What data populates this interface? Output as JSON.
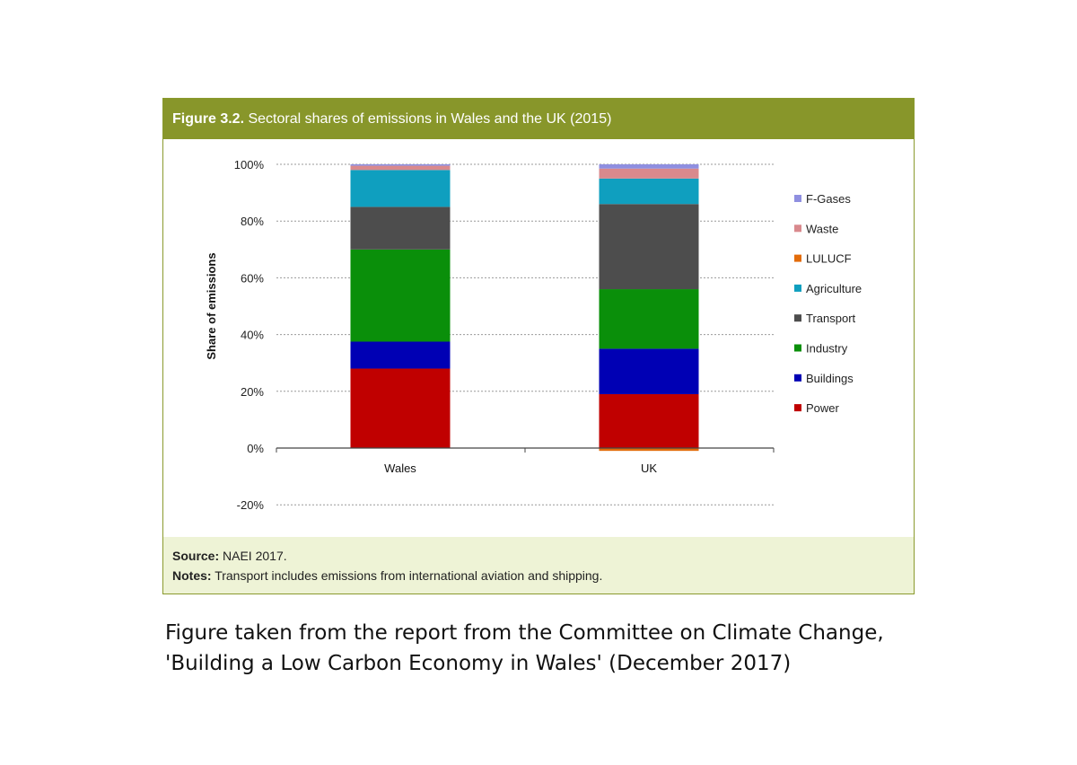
{
  "figure": {
    "number": "Figure 3.2.",
    "title": "Sectoral shares of emissions in Wales and the UK (2015)",
    "source_label": "Source:",
    "source_text": "NAEI 2017.",
    "notes_label": "Notes:",
    "notes_text": "Transport includes emissions from international aviation and shipping."
  },
  "caption": {
    "line1": "Figure taken from the report from the Committee on Climate Change,",
    "line2": "'Building a Low Carbon Economy in Wales' (December 2017)"
  },
  "chart_data": {
    "type": "bar",
    "stacked": true,
    "categories": [
      "Wales",
      "UK"
    ],
    "ylabel": "Share of emissions",
    "ylim": [
      -20,
      100
    ],
    "yticks": [
      -20,
      0,
      20,
      40,
      60,
      80,
      100
    ],
    "ytick_labels": [
      "-20%",
      "0%",
      "20%",
      "40%",
      "60%",
      "80%",
      "100%"
    ],
    "grid": true,
    "legend_position": "right",
    "series": [
      {
        "name": "Power",
        "color": "#c00000",
        "values": [
          28,
          19
        ]
      },
      {
        "name": "Buildings",
        "color": "#0000b4",
        "values": [
          9.5,
          16
        ]
      },
      {
        "name": "Industry",
        "color": "#0a8f0a",
        "values": [
          32.5,
          21
        ]
      },
      {
        "name": "Transport",
        "color": "#4d4d4d",
        "values": [
          15,
          30
        ]
      },
      {
        "name": "Agriculture",
        "color": "#0f9fbf",
        "values": [
          13,
          9
        ]
      },
      {
        "name": "LULUCF",
        "color": "#e36c0a",
        "values": [
          0,
          -1
        ]
      },
      {
        "name": "Waste",
        "color": "#d9898d",
        "values": [
          1.5,
          3.5
        ]
      },
      {
        "name": "F-Gases",
        "color": "#8f8fe0",
        "values": [
          0.5,
          1.5
        ]
      }
    ],
    "legend_order": [
      "F-Gases",
      "Waste",
      "LULUCF",
      "Agriculture",
      "Transport",
      "Industry",
      "Buildings",
      "Power"
    ]
  }
}
